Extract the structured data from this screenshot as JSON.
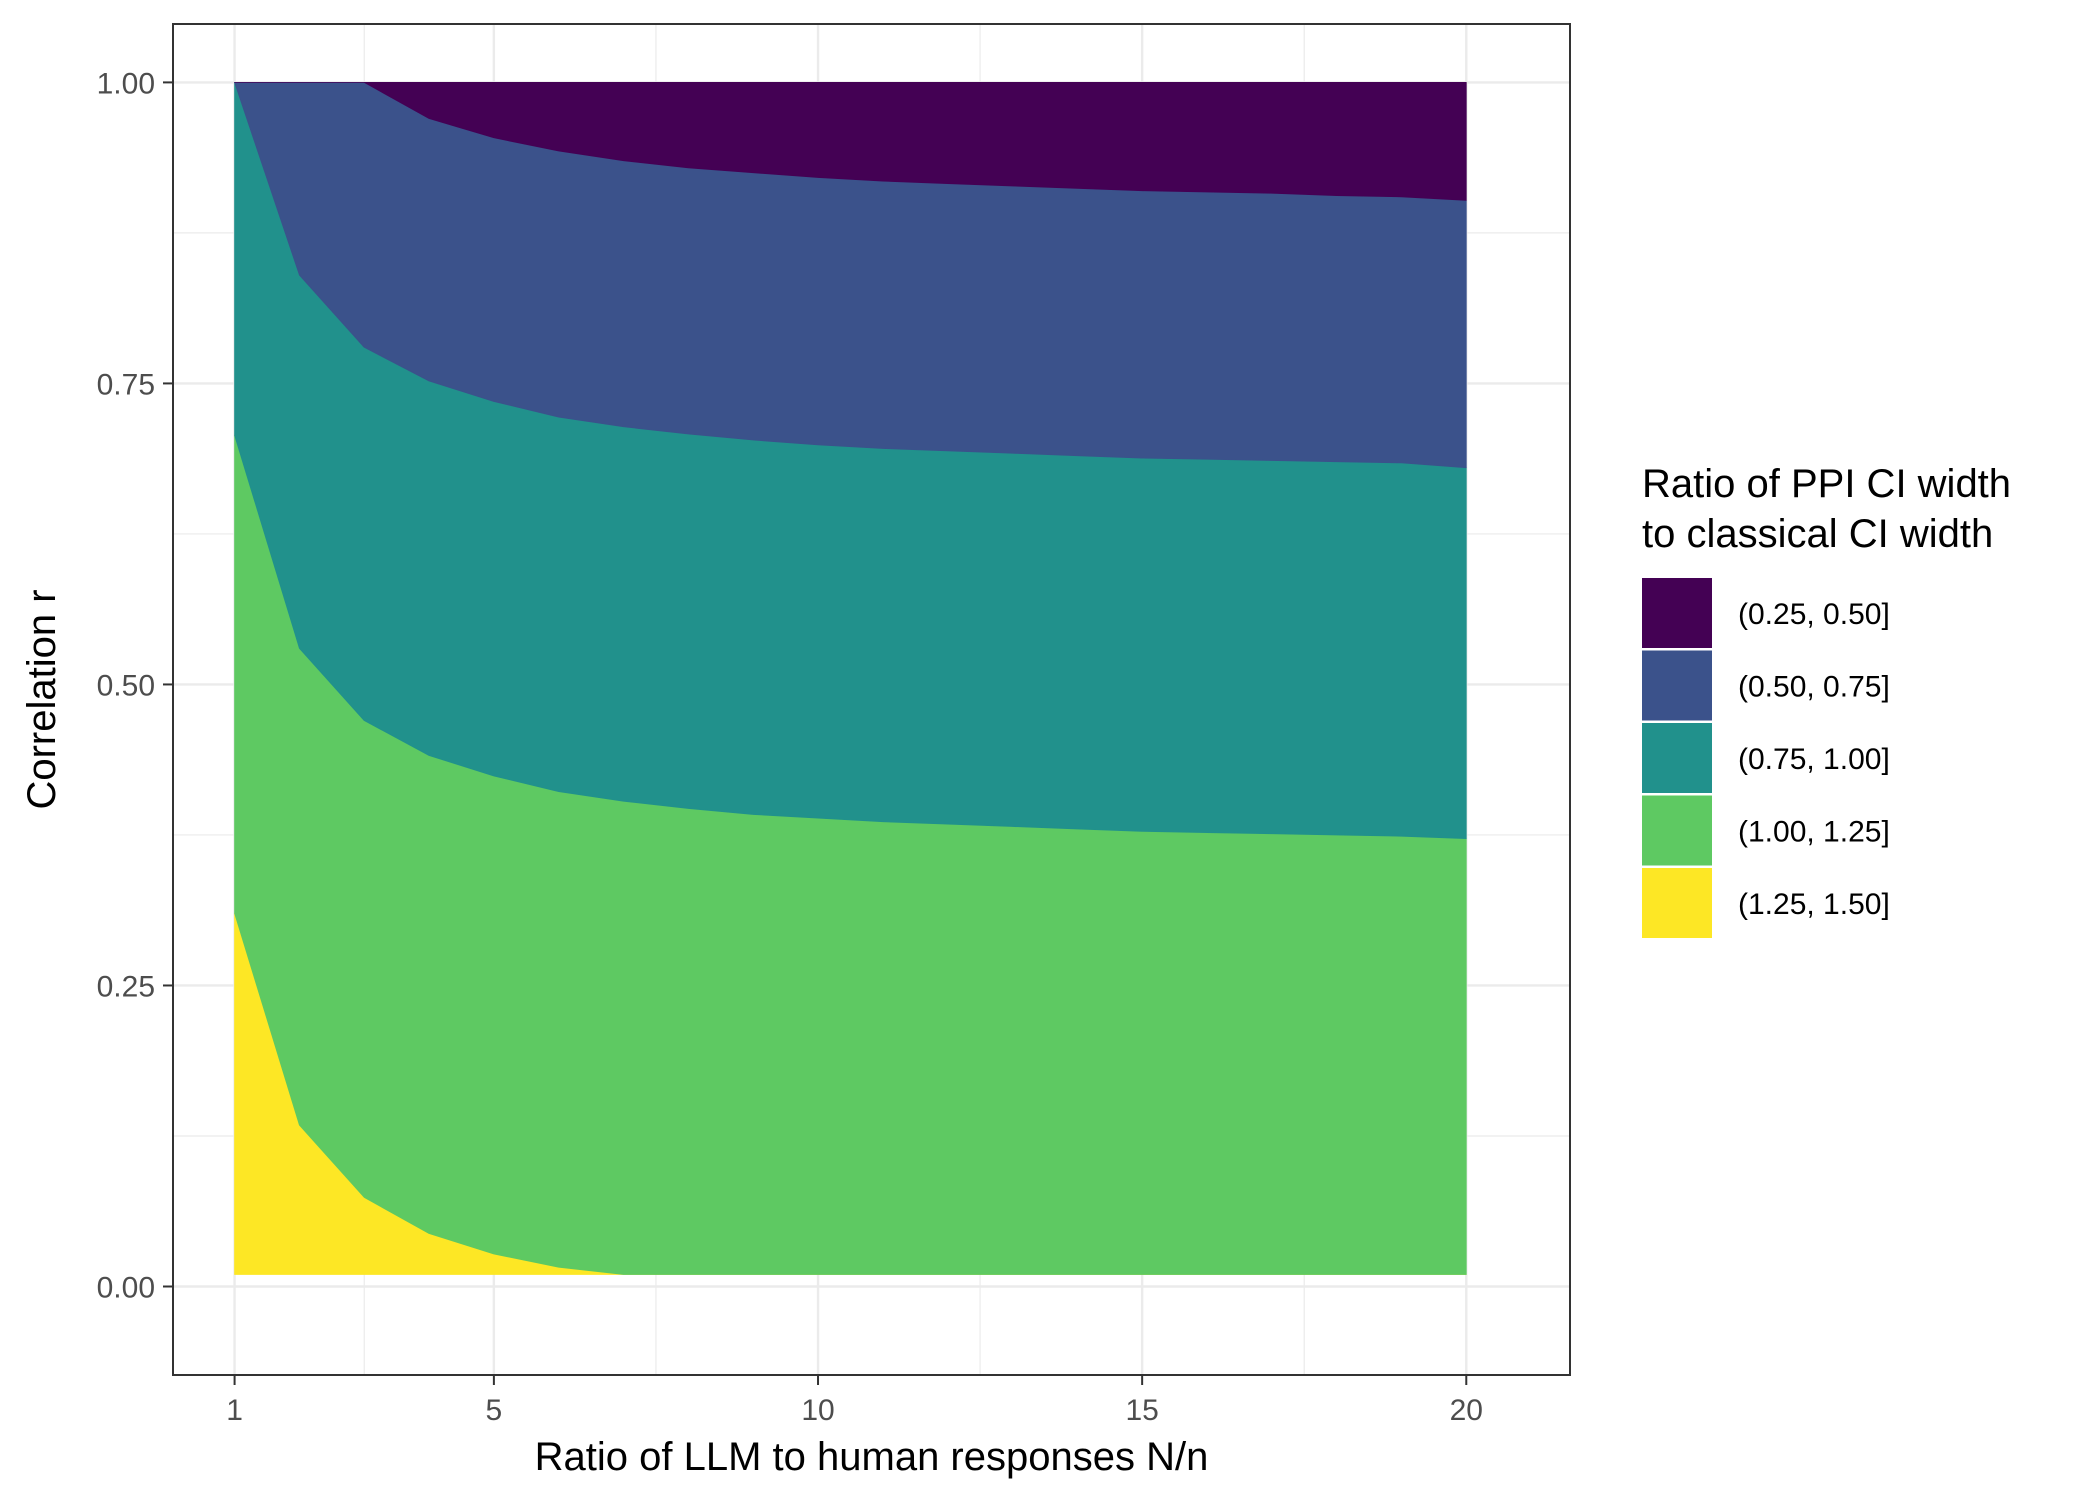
{
  "chart_data": {
    "type": "area",
    "xlabel": "Ratio of LLM to human responses N/n",
    "ylabel": "Correlation r",
    "xlim": [
      0.05,
      21.6
    ],
    "ylim": [
      -0.0735,
      1.0485
    ],
    "x_ticks": [
      1,
      5,
      10,
      15,
      20
    ],
    "x_tick_labels": [
      "1",
      "5",
      "10",
      "15",
      "20"
    ],
    "y_ticks": [
      0,
      0.25,
      0.5,
      0.75,
      1
    ],
    "y_tick_labels": [
      "0.00",
      "0.25",
      "0.50",
      "0.75",
      "1.00"
    ],
    "grid": true,
    "legend_position": "right",
    "legend_title": [
      "Ratio of PPI CI width",
      "to classical CI width"
    ],
    "x": [
      1,
      2,
      3,
      4,
      5,
      6,
      7,
      8,
      9,
      10,
      11,
      12,
      13,
      14,
      15,
      16,
      17,
      18,
      19,
      20
    ],
    "band_bottom": 0.01,
    "band_top": 1.0,
    "boundaries": [
      {
        "between": [
          "(1.25, 1.50]",
          "(1.00, 1.25]"
        ],
        "values": [
          0.31,
          0.134,
          0.074,
          0.044,
          0.027,
          0.016,
          0.01,
          0.01,
          0.01,
          0.01,
          0.01,
          0.01,
          0.01,
          0.01,
          0.01,
          0.01,
          0.01,
          0.01,
          0.01,
          0.01
        ]
      },
      {
        "between": [
          "(1.00, 1.25]",
          "(0.75, 1.00]"
        ],
        "values": [
          0.707,
          0.53,
          0.47,
          0.441,
          0.424,
          0.411,
          0.403,
          0.397,
          0.392,
          0.389,
          0.386,
          0.384,
          0.382,
          0.38,
          0.378,
          0.377,
          0.376,
          0.375,
          0.374,
          0.372
        ]
      },
      {
        "between": [
          "(0.75, 1.00]",
          "(0.50, 0.75]"
        ],
        "values": [
          1.0,
          0.84,
          0.78,
          0.752,
          0.735,
          0.722,
          0.714,
          0.708,
          0.703,
          0.699,
          0.696,
          0.694,
          0.692,
          0.69,
          0.688,
          0.687,
          0.686,
          0.685,
          0.684,
          0.68
        ]
      },
      {
        "between": [
          "(0.50, 0.75]",
          "(0.25, 0.50]"
        ],
        "values": [
          1.0,
          1.0,
          1.0,
          0.97,
          0.954,
          0.943,
          0.935,
          0.929,
          0.925,
          0.921,
          0.918,
          0.916,
          0.914,
          0.912,
          0.91,
          0.909,
          0.908,
          0.906,
          0.905,
          0.902
        ]
      }
    ],
    "series": [
      {
        "name": "(1.25, 1.50]",
        "color": "#FDE725"
      },
      {
        "name": "(1.00, 1.25]",
        "color": "#5EC962"
      },
      {
        "name": "(0.75, 1.00]",
        "color": "#21918C"
      },
      {
        "name": "(0.50, 0.75]",
        "color": "#3B528B"
      },
      {
        "name": "(0.25, 0.50]",
        "color": "#440154"
      }
    ],
    "legend_order": [
      "(0.25, 0.50]",
      "(0.50, 0.75]",
      "(0.75, 1.00]",
      "(1.00, 1.25]",
      "(1.25, 1.50]"
    ],
    "colors": {
      "panel_border": "#333333",
      "grid": "#EBEBEB",
      "background": "#FFFFFF"
    }
  }
}
